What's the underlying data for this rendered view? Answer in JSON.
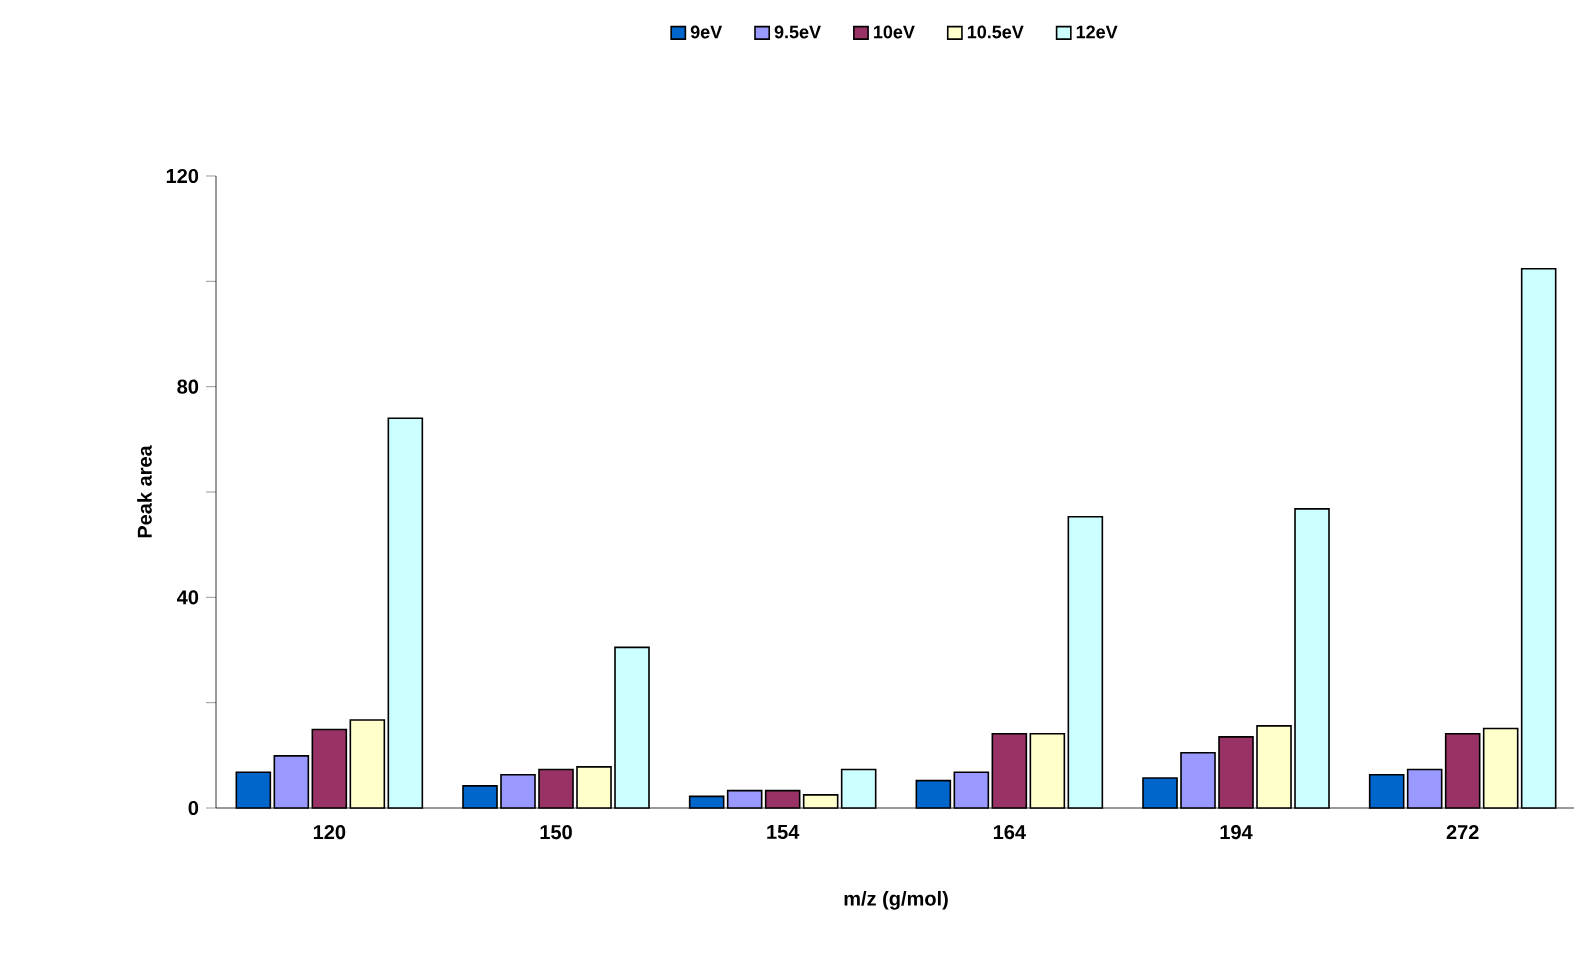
{
  "chart_data": {
    "type": "bar",
    "xlabel": "m/z (g/mol)",
    "ylabel": "Peak area",
    "categories": [
      "120",
      "150",
      "154",
      "164",
      "194",
      "272"
    ],
    "series": [
      {
        "name": "9eV",
        "color": "#0066cc",
        "values": [
          6.8,
          4.2,
          2.2,
          5.2,
          5.7,
          6.3
        ]
      },
      {
        "name": "9.5eV",
        "color": "#9999ff",
        "values": [
          9.9,
          6.3,
          3.3,
          6.8,
          10.5,
          7.3
        ]
      },
      {
        "name": "10eV",
        "color": "#993366",
        "values": [
          14.9,
          7.3,
          3.3,
          14.1,
          13.5,
          14.1
        ]
      },
      {
        "name": "10.5eV",
        "color": "#ffffcc",
        "values": [
          16.7,
          7.8,
          2.5,
          14.1,
          15.6,
          15.1
        ]
      },
      {
        "name": "12eV",
        "color": "#ccffff",
        "values": [
          74,
          30.5,
          7.3,
          55.3,
          56.8,
          102.4
        ]
      }
    ],
    "ylim": [
      0,
      120
    ],
    "yticks": [
      0,
      {
        "value": 20,
        "label": null
      },
      40,
      {
        "value": 60,
        "label": null
      },
      80,
      {
        "value": 100,
        "label": null
      },
      120
    ],
    "legend": "top",
    "grid": false
  }
}
